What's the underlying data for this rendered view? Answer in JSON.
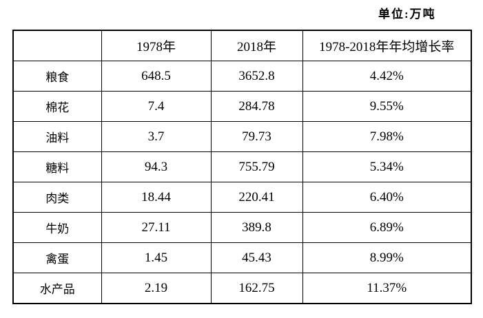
{
  "unit_label": "单位:万吨",
  "table": {
    "columns": [
      "",
      "1978年",
      "2018年",
      "1978-2018年年均增长率"
    ],
    "rows": [
      {
        "category": "粮食",
        "v1978": "648.5",
        "v2018": "3652.8",
        "growth": "4.42%"
      },
      {
        "category": "棉花",
        "v1978": "7.4",
        "v2018": "284.78",
        "growth": "9.55%"
      },
      {
        "category": "油料",
        "v1978": "3.7",
        "v2018": "79.73",
        "growth": "7.98%"
      },
      {
        "category": "糖料",
        "v1978": "94.3",
        "v2018": "755.79",
        "growth": "5.34%"
      },
      {
        "category": "肉类",
        "v1978": "18.44",
        "v2018": "220.41",
        "growth": "6.40%"
      },
      {
        "category": "牛奶",
        "v1978": "27.11",
        "v2018": "389.8",
        "growth": "6.89%"
      },
      {
        "category": "禽蛋",
        "v1978": "1.45",
        "v2018": "45.43",
        "growth": "8.99%"
      },
      {
        "category": "水产品",
        "v1978": "2.19",
        "v2018": "162.75",
        "growth": "11.37%"
      }
    ]
  }
}
